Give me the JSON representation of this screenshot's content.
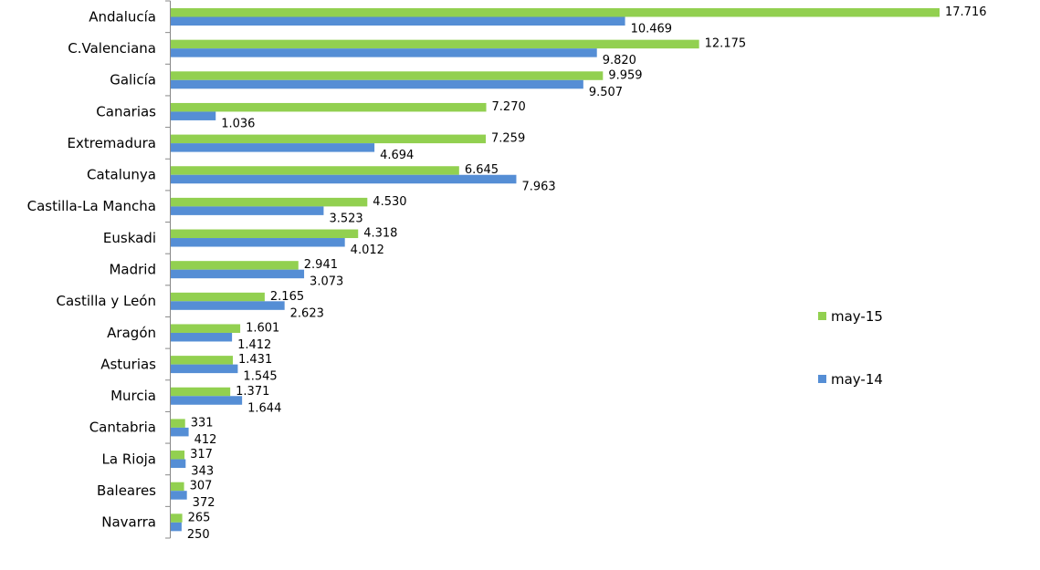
{
  "chart_data": {
    "type": "bar",
    "orientation": "horizontal",
    "title": "",
    "xlabel": "",
    "ylabel": "",
    "xlim": [
      0,
      17716
    ],
    "grid": false,
    "legend_position": "right",
    "categories": [
      "Andalucía",
      "C.Valenciana",
      "Galicía",
      "Canarias",
      "Extremadura",
      "Catalunya",
      "Castilla-La Mancha",
      "Euskadi",
      "Madrid",
      "Castilla y León",
      "Aragón",
      "Asturias",
      "Murcia",
      "Cantabria",
      "La Rioja",
      "Baleares",
      "Navarra"
    ],
    "series": [
      {
        "name": "may-15",
        "color": "#92D050",
        "values": [
          17716,
          12175,
          9959,
          7270,
          7259,
          6645,
          4530,
          4318,
          2941,
          2165,
          1601,
          1431,
          1371,
          331,
          317,
          307,
          265
        ],
        "labels": [
          "17.716",
          "12.175",
          "9.959",
          "7.270",
          "7.259",
          "6.645",
          "4.530",
          "4.318",
          "2.941",
          "2.165",
          "1.601",
          "1.431",
          "1.371",
          "331",
          "317",
          "307",
          "265"
        ]
      },
      {
        "name": "may-14",
        "color": "#558ED5",
        "values": [
          10469,
          9820,
          9507,
          1036,
          4694,
          7963,
          3523,
          4012,
          3073,
          2623,
          1412,
          1545,
          1644,
          412,
          343,
          372,
          250
        ],
        "labels": [
          "10.469",
          "9.820",
          "9.507",
          "1.036",
          "4.694",
          "7.963",
          "3.523",
          "4.012",
          "3.073",
          "2.623",
          "1.412",
          "1.545",
          "1.644",
          "412",
          "343",
          "372",
          "250"
        ]
      }
    ]
  }
}
